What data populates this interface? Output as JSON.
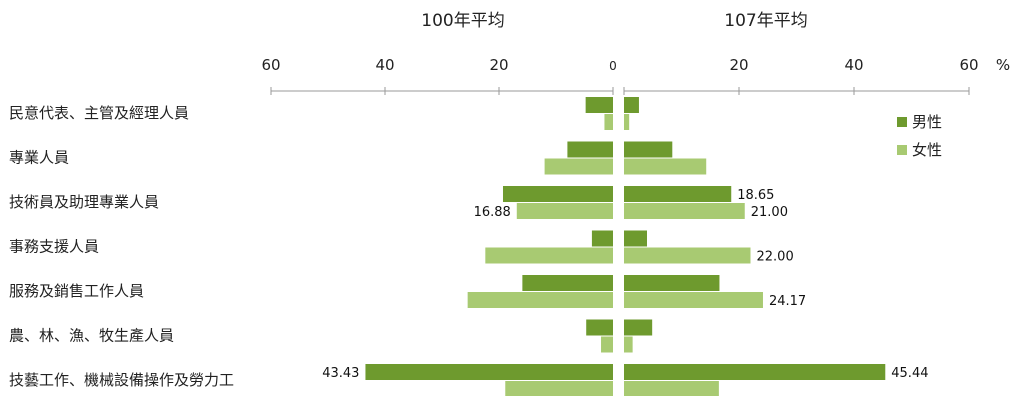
{
  "chart_data": {
    "type": "bar",
    "orientation": "horizontal-butterfly",
    "panels": [
      {
        "title": "100年平均",
        "direction": "left"
      },
      {
        "title": "107年平均",
        "direction": "right"
      }
    ],
    "axis": {
      "ticks": [
        "60",
        "40",
        "20",
        "0",
        "20",
        "40",
        "60"
      ],
      "unit": "%",
      "max": 60
    },
    "categories": [
      "民意代表、主管及經理人員",
      "專業人員",
      "技術員及助理專業人員",
      "事務支援人員",
      "服務及銷售工作人員",
      "農、林、漁、牧生產人員",
      "技藝工作、機械設備操作及勞力工"
    ],
    "legend": {
      "position": "right",
      "entries": [
        "男性",
        "女性"
      ]
    },
    "series": [
      {
        "name": "男性",
        "color": "#6e9a2e",
        "panel": "100年平均",
        "values": [
          4.8,
          8.0,
          19.3,
          3.7,
          15.9,
          4.7,
          43.43
        ]
      },
      {
        "name": "女性",
        "color": "#a8ca72",
        "panel": "100年平均",
        "values": [
          1.5,
          12.0,
          16.88,
          22.4,
          25.5,
          2.1,
          18.9
        ]
      },
      {
        "name": "男性",
        "color": "#6e9a2e",
        "panel": "107年平均",
        "values": [
          2.6,
          8.4,
          18.65,
          4.0,
          16.6,
          4.9,
          45.44
        ]
      },
      {
        "name": "女性",
        "color": "#a8ca72",
        "panel": "107年平均",
        "values": [
          0.9,
          14.3,
          21.0,
          22.0,
          24.17,
          1.5,
          16.5
        ]
      }
    ],
    "data_labels": [
      {
        "panel": "107年平均",
        "series": "男性",
        "category": 2,
        "text": "18.65"
      },
      {
        "panel": "100年平均",
        "series": "女性",
        "category": 2,
        "text": "16.88"
      },
      {
        "panel": "107年平均",
        "series": "女性",
        "category": 2,
        "text": "21.00"
      },
      {
        "panel": "107年平均",
        "series": "女性",
        "category": 3,
        "text": "22.00"
      },
      {
        "panel": "107年平均",
        "series": "女性",
        "category": 4,
        "text": "24.17"
      },
      {
        "panel": "100年平均",
        "series": "男性",
        "category": 6,
        "text": "43.43"
      },
      {
        "panel": "107年平均",
        "series": "男性",
        "category": 6,
        "text": "45.44"
      }
    ]
  }
}
